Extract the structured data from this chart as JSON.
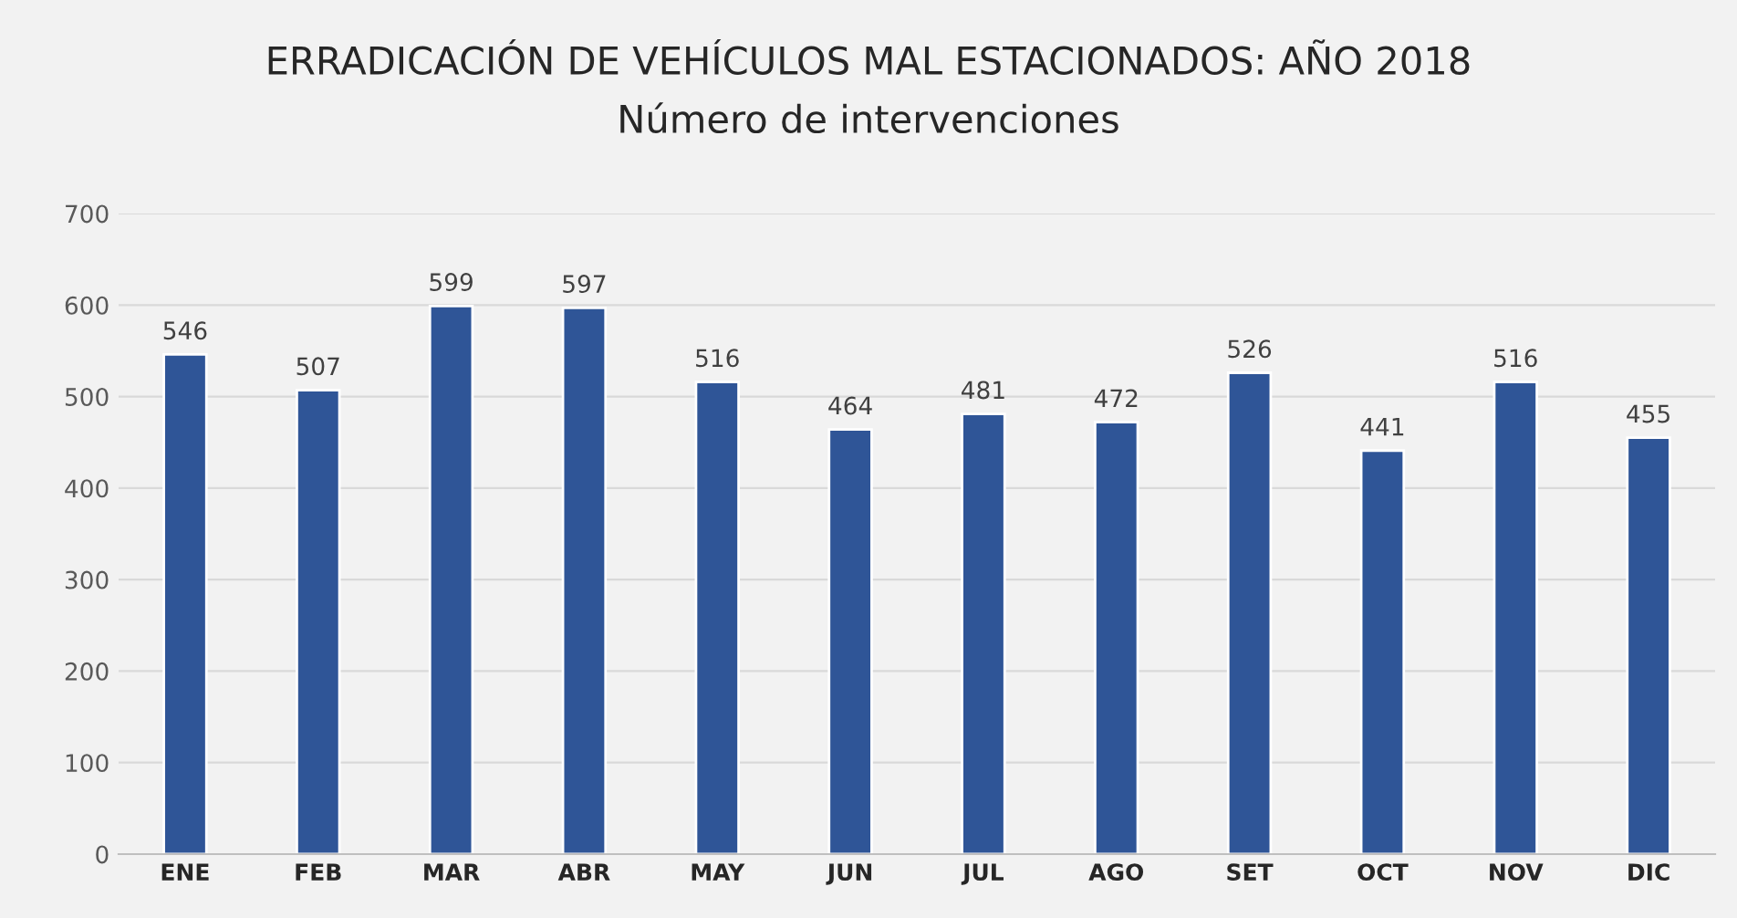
{
  "chart_data": {
    "type": "bar",
    "title": "ERRADICACIÓN DE VEHÍCULOS MAL ESTACIONADOS: AÑO 2018",
    "subtitle": "Número de intervenciones",
    "categories": [
      "ENE",
      "FEB",
      "MAR",
      "ABR",
      "MAY",
      "JUN",
      "JUL",
      "AGO",
      "SET",
      "OCT",
      "NOV",
      "DIC"
    ],
    "values": [
      546,
      507,
      599,
      597,
      516,
      464,
      481,
      472,
      526,
      441,
      516,
      455
    ],
    "color": "#2f5597",
    "ylim": [
      0,
      700
    ],
    "yticks": [
      0,
      100,
      200,
      300,
      400,
      500,
      600,
      700
    ],
    "grid": "y",
    "data_labels": true,
    "legend": false
  }
}
